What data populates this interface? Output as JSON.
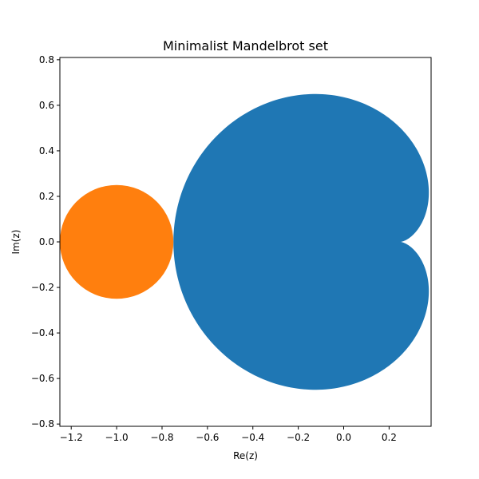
{
  "chart_data": {
    "type": "area",
    "title": "Minimalist Mandelbrot set",
    "xlabel": "Re(z)",
    "ylabel": "Im(z)",
    "xlim": [
      -1.25,
      0.385
    ],
    "ylim": [
      -0.81,
      0.81
    ],
    "xticks": [
      -1.2,
      -1.0,
      -0.8,
      -0.6,
      -0.4,
      -0.2,
      0.0,
      0.2
    ],
    "xtick_labels": [
      "−1.2",
      "−1.0",
      "−0.8",
      "−0.6",
      "−0.4",
      "−0.2",
      "0.0",
      "0.2"
    ],
    "yticks": [
      -0.8,
      -0.6,
      -0.4,
      -0.2,
      0.0,
      0.2,
      0.4,
      0.6,
      0.8
    ],
    "ytick_labels": [
      "−0.8",
      "−0.6",
      "−0.4",
      "−0.2",
      "0.0",
      "0.2",
      "0.4",
      "0.6",
      "0.8"
    ],
    "grid": false,
    "legend": "none",
    "aspect": "equal",
    "shapes": [
      {
        "kind": "main-cardioid",
        "curve": "c = e^{it}/2 - e^{2it}/4",
        "color": "#1f77b4"
      },
      {
        "kind": "period-2-bulb",
        "center": [
          -1.0,
          0.0
        ],
        "radius": 0.25,
        "color": "#ff7f0e"
      }
    ]
  }
}
